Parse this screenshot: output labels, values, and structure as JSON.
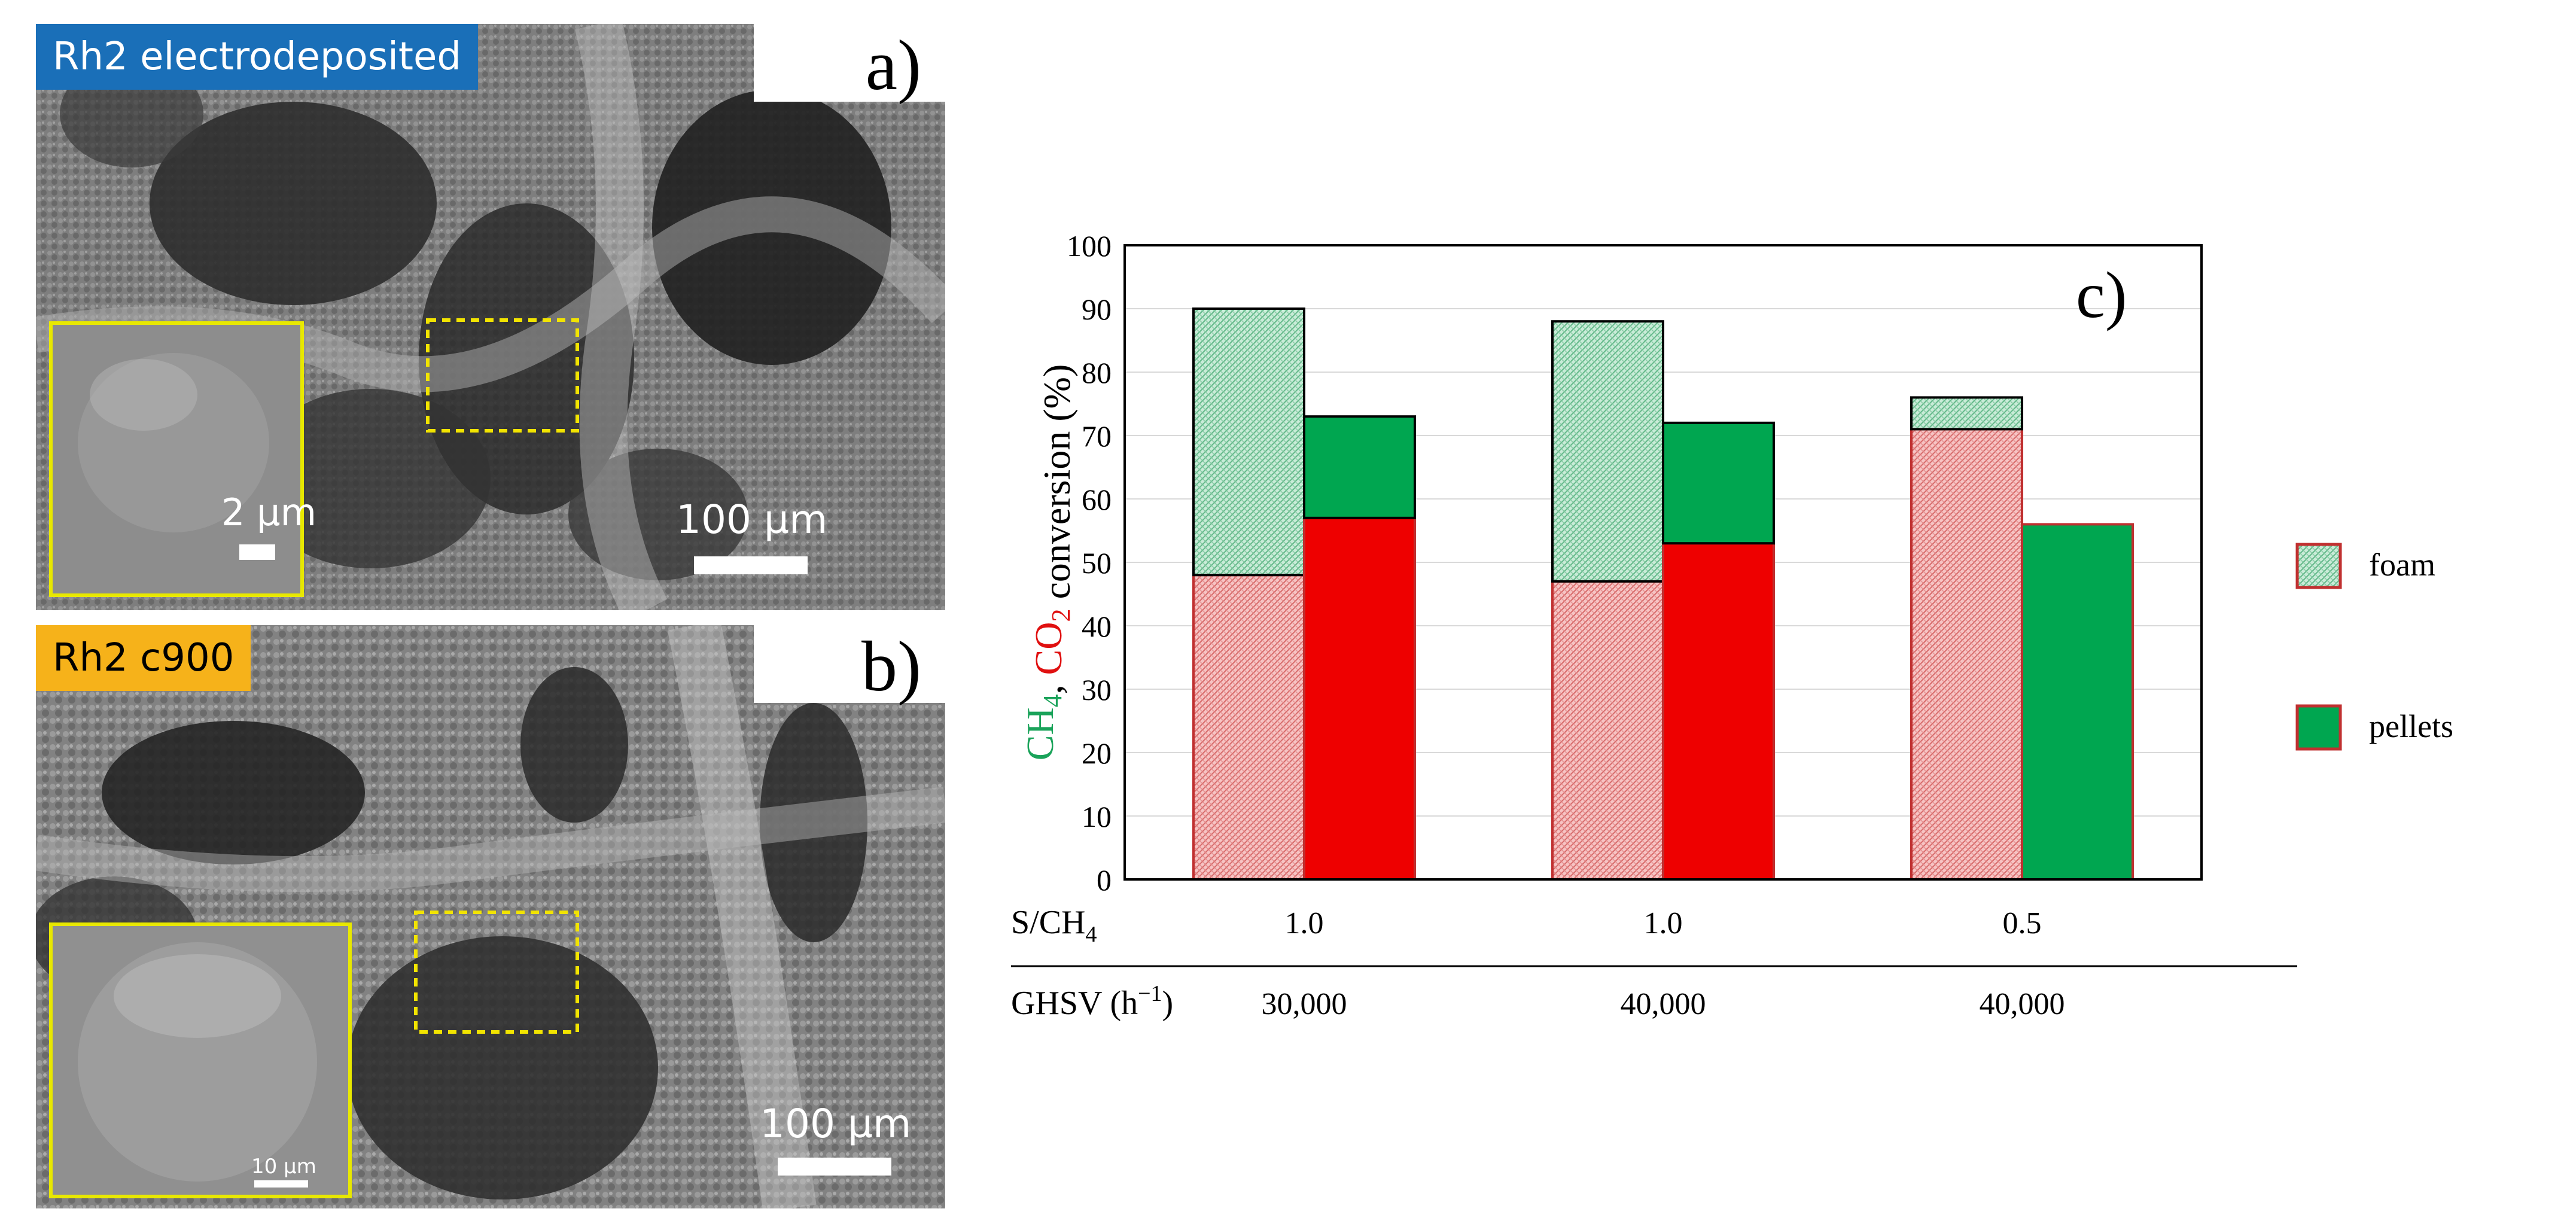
{
  "panels": {
    "a": {
      "tag": "Rh2 electrodeposited",
      "tag_color": "#1a6fb8",
      "tag_text_color": "#ffffff",
      "letter": "a)",
      "scale_main": "100 µm",
      "scale_inset": "2 µm"
    },
    "b": {
      "tag": "Rh2 c900",
      "tag_color": "#f6b21a",
      "tag_text_color": "#000000",
      "letter": "b)",
      "scale_main": "100 µm",
      "scale_inset": "10 µm"
    }
  },
  "chart_data": {
    "type": "bar",
    "stacked": true,
    "panel_letter": "c)",
    "ylabel": {
      "part1": "CH",
      "sub1": "4",
      "sep": ", ",
      "part2": "CO",
      "sub2": "2",
      "rest": " conversion (%)"
    },
    "ylim": [
      0,
      100
    ],
    "yticks": [
      0,
      10,
      20,
      30,
      40,
      50,
      60,
      70,
      80,
      90,
      100
    ],
    "row_labels": [
      {
        "label": "S/CH",
        "sub": "4",
        "values": [
          "1.0",
          "1.0",
          "0.5"
        ]
      },
      {
        "label": "GHSV (h",
        "sup": "−1",
        "tail": ")",
        "values": [
          "30,000",
          "40,000",
          "40,000"
        ]
      }
    ],
    "groups": [
      {
        "foam": {
          "co2": 48,
          "ch4": 90
        },
        "pellets": {
          "co2": 57,
          "ch4": 73
        }
      },
      {
        "foam": {
          "co2": 47,
          "ch4": 88
        },
        "pellets": {
          "co2": 53,
          "ch4": 72
        }
      },
      {
        "foam": {
          "co2": 71,
          "ch4": 76
        },
        "pellets": {
          "co2": null,
          "ch4": 56
        }
      }
    ],
    "legend": [
      {
        "name": "foam",
        "pattern": "hatched"
      },
      {
        "name": "pellets",
        "pattern": "solid"
      }
    ],
    "colors": {
      "ch4_text": "#1aa35a",
      "co2_text": "#e01010",
      "pellet_red": "#ee0000",
      "pellet_green": "#00a650",
      "foam_red": "#f2a6a6",
      "foam_green": "#a8dcc0",
      "red_border": "#c03030"
    }
  }
}
